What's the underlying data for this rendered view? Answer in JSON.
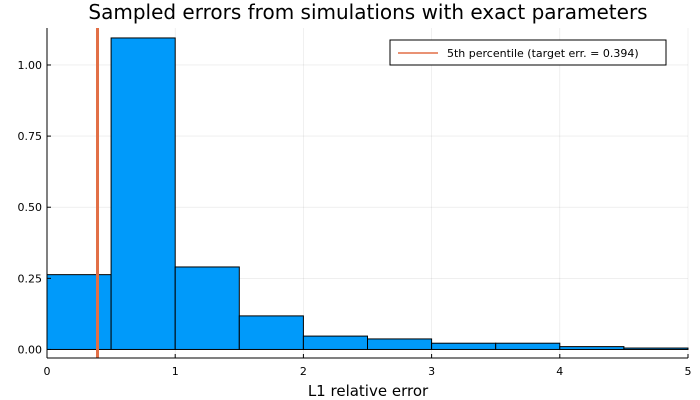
{
  "chart_data": {
    "type": "bar",
    "title": "Sampled errors from simulations with exact parameters",
    "xlabel": "L1 relative error",
    "ylabel": "",
    "xlim": [
      0,
      5
    ],
    "ylim": [
      -0.03,
      1.13
    ],
    "grid": true,
    "x_ticks": [
      0,
      1,
      2,
      3,
      4,
      5
    ],
    "x_tick_labels": [
      "0",
      "1",
      "2",
      "3",
      "4",
      "5"
    ],
    "y_ticks": [
      0.0,
      0.25,
      0.5,
      0.75,
      1.0
    ],
    "y_tick_labels": [
      "0.00",
      "0.25",
      "0.50",
      "0.75",
      "1.00"
    ],
    "bins": [
      {
        "x0": 0.0,
        "x1": 0.5,
        "value": 0.263
      },
      {
        "x0": 0.5,
        "x1": 1.0,
        "value": 1.095
      },
      {
        "x0": 1.0,
        "x1": 1.5,
        "value": 0.29
      },
      {
        "x0": 1.5,
        "x1": 2.0,
        "value": 0.118
      },
      {
        "x0": 2.0,
        "x1": 2.5,
        "value": 0.047
      },
      {
        "x0": 2.5,
        "x1": 3.0,
        "value": 0.037
      },
      {
        "x0": 3.0,
        "x1": 3.5,
        "value": 0.022
      },
      {
        "x0": 3.5,
        "x1": 4.0,
        "value": 0.022
      },
      {
        "x0": 4.0,
        "x1": 4.5,
        "value": 0.01
      },
      {
        "x0": 4.5,
        "x1": 5.0,
        "value": 0.005
      }
    ],
    "bar_color": "#009AFA",
    "vline": {
      "x": 0.394,
      "color": "#E26F46"
    },
    "legend": {
      "entries": [
        "5th percentile (target err. = 0.394)"
      ],
      "placement": "top-right"
    }
  }
}
